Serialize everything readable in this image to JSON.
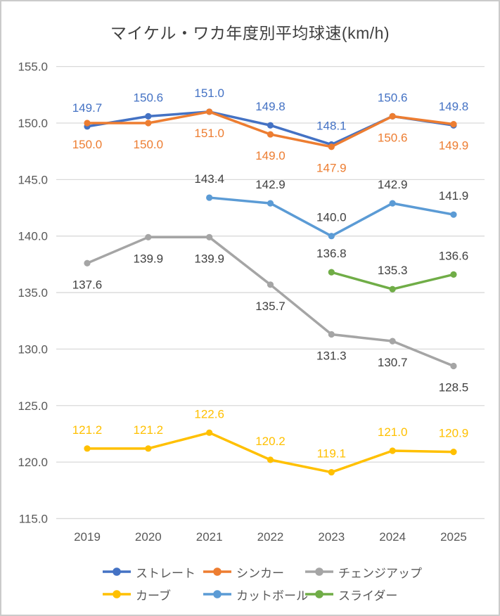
{
  "chart_data": {
    "type": "line",
    "title": "マイケル・ワカ年度別平均球速(km/h)",
    "categories": [
      "2019",
      "2020",
      "2021",
      "2022",
      "2023",
      "2024",
      "2025"
    ],
    "series": [
      {
        "id": "straight",
        "name": "ストレート",
        "color": "#4472C4",
        "label_color": "#4472C4",
        "label_position": "above",
        "values": [
          149.7,
          150.6,
          151.0,
          149.8,
          148.1,
          150.6,
          149.8
        ]
      },
      {
        "id": "sinker",
        "name": "シンカー",
        "color": "#ED7D31",
        "label_color": "#ED7D31",
        "label_position": "below",
        "values": [
          150.0,
          150.0,
          151.0,
          149.0,
          147.9,
          150.6,
          149.9
        ]
      },
      {
        "id": "changeup",
        "name": "チェンジアップ",
        "color": "#A5A5A5",
        "label_color": "#404040",
        "label_position": "below",
        "values": [
          137.6,
          139.9,
          139.9,
          135.7,
          131.3,
          130.7,
          128.5
        ]
      },
      {
        "id": "curve",
        "name": "カーブ",
        "color": "#FFC000",
        "label_color": "#FFC000",
        "label_position": "above",
        "values": [
          121.2,
          121.2,
          122.6,
          120.2,
          119.1,
          121.0,
          120.9
        ]
      },
      {
        "id": "cutter",
        "name": "カットボール",
        "color": "#5B9BD5",
        "label_color": "#404040",
        "label_position": "above",
        "values": [
          null,
          null,
          143.4,
          142.9,
          140.0,
          142.9,
          141.9
        ]
      },
      {
        "id": "slider",
        "name": "スライダー",
        "color": "#70AD47",
        "label_color": "#404040",
        "label_position": "above",
        "values": [
          null,
          null,
          null,
          null,
          136.8,
          135.3,
          136.6
        ]
      }
    ],
    "y_ticks": [
      155.0,
      150.0,
      145.0,
      140.0,
      135.0,
      130.0,
      125.0,
      120.0,
      115.0
    ],
    "ylim": [
      115.0,
      155.0
    ],
    "xlabel": "",
    "ylabel": "",
    "value_format": "0.1f",
    "grid": true,
    "legend_position": "bottom",
    "colors": {
      "gridline": "#D9D9D9",
      "axis_text": "#595959",
      "title_text": "#3F3F3F",
      "background": "#FFFFFF",
      "border": "#CBCBCB"
    }
  }
}
